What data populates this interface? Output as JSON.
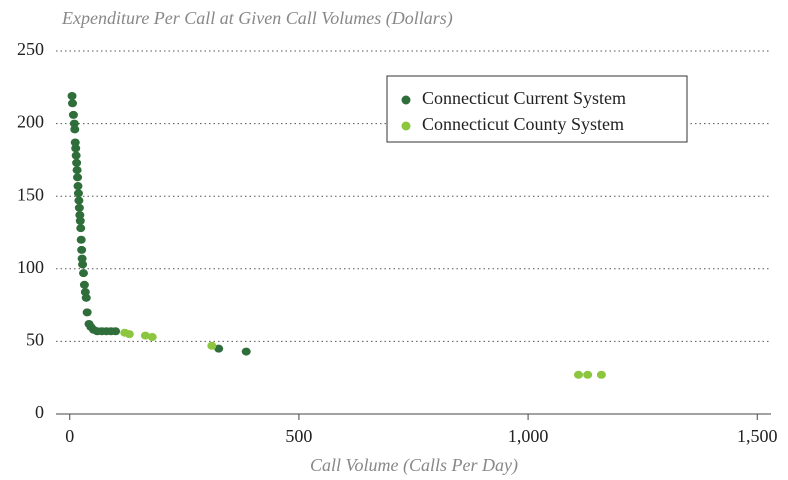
{
  "chart_data": {
    "type": "scatter",
    "title": "Expenditure Per Call at Given Call Volumes (Dollars)",
    "x_label": "Call Volume (Calls Per Day)",
    "xlim": [
      -30,
      1530
    ],
    "ylim": [
      0,
      250
    ],
    "xticks": [
      0,
      500,
      {
        "value": 1000,
        "label": "1,000"
      },
      {
        "value": 1500,
        "label": "1,500"
      }
    ],
    "yticks": [
      0,
      50,
      100,
      150,
      200,
      250
    ],
    "grid": true,
    "legend": "upper right",
    "series": [
      {
        "name": "Connecticut Current System",
        "color": "#2f6e3b",
        "x": [
          5,
          6,
          8,
          10,
          11,
          12,
          13,
          14,
          15,
          16,
          17,
          18,
          19,
          20,
          21,
          22,
          23,
          24,
          25,
          26,
          27,
          28,
          30,
          32,
          34,
          36,
          38,
          42,
          46,
          52,
          60,
          70,
          80,
          90,
          100,
          325,
          385
        ],
        "values": [
          219,
          214,
          206,
          200,
          196,
          187,
          183,
          178,
          173,
          168,
          163,
          157,
          152,
          147,
          142,
          137,
          133,
          128,
          120,
          113,
          107,
          103,
          97,
          89,
          84,
          80,
          70,
          62,
          60,
          58,
          57,
          57,
          57,
          57,
          57,
          45,
          43
        ]
      },
      {
        "name": "Connecticut County System",
        "color": "#8cc63f",
        "x": [
          120,
          130,
          165,
          180,
          310,
          1110,
          1130,
          1160
        ],
        "values": [
          56,
          55,
          54,
          53,
          47,
          27,
          27,
          27
        ]
      }
    ]
  }
}
